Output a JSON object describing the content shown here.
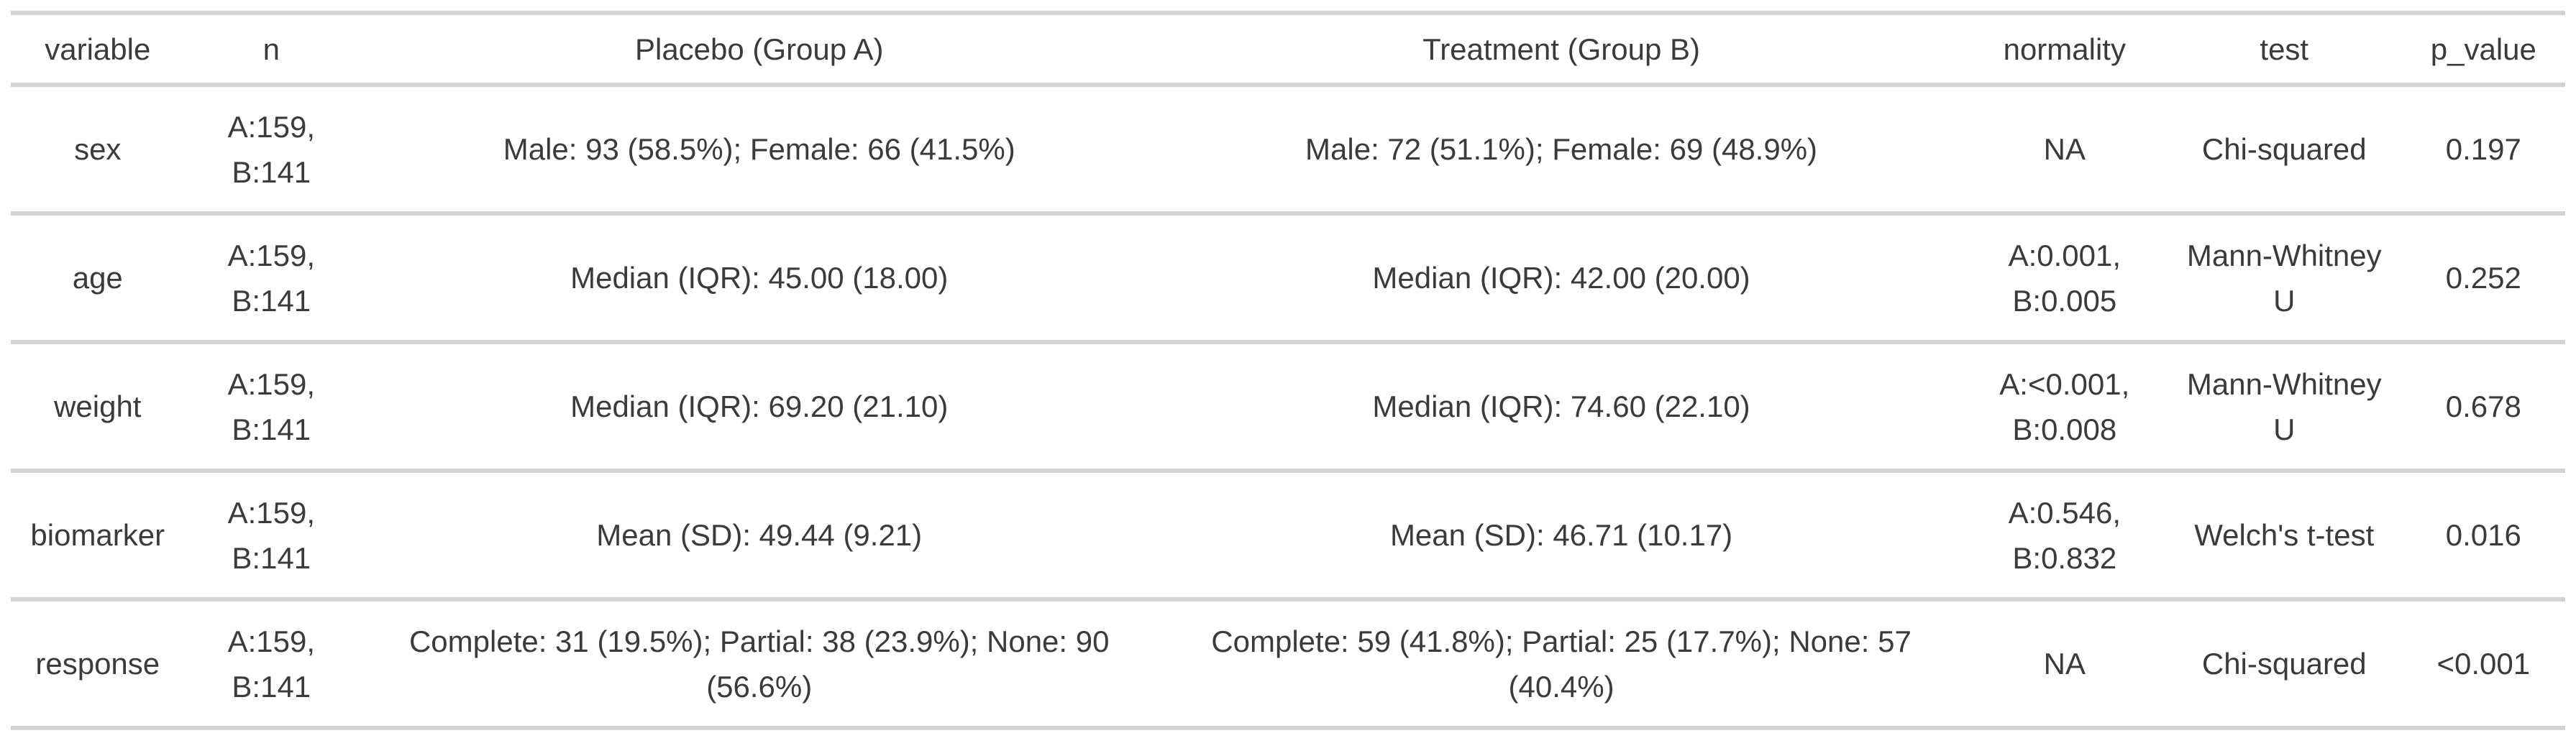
{
  "colors": {
    "background": "#ffffff",
    "text": "#3b3b3b",
    "rule": "#d3d3d3"
  },
  "table": {
    "columns": [
      {
        "key": "variable",
        "label": "variable"
      },
      {
        "key": "n",
        "label": "n"
      },
      {
        "key": "placebo",
        "label": "Placebo (Group A)"
      },
      {
        "key": "treatment",
        "label": "Treatment (Group B)"
      },
      {
        "key": "normality",
        "label": "normality"
      },
      {
        "key": "test",
        "label": "test"
      },
      {
        "key": "p_value",
        "label": "p_value"
      }
    ],
    "rows": [
      {
        "variable": "sex",
        "n": "A:159, B:141",
        "placebo": "Male: 93 (58.5%); Female: 66 (41.5%)",
        "treatment": "Male: 72 (51.1%); Female: 69 (48.9%)",
        "normality": "NA",
        "test": "Chi-squared",
        "p_value": "0.197"
      },
      {
        "variable": "age",
        "n": "A:159, B:141",
        "placebo": "Median (IQR): 45.00 (18.00)",
        "treatment": "Median (IQR): 42.00 (20.00)",
        "normality": "A:0.001, B:0.005",
        "test": "Mann-Whitney U",
        "p_value": "0.252"
      },
      {
        "variable": "weight",
        "n": "A:159, B:141",
        "placebo": "Median (IQR): 69.20 (21.10)",
        "treatment": "Median (IQR): 74.60 (22.10)",
        "normality": "A:<0.001, B:0.008",
        "test": "Mann-Whitney U",
        "p_value": "0.678"
      },
      {
        "variable": "biomarker",
        "n": "A:159, B:141",
        "placebo": "Mean (SD): 49.44 (9.21)",
        "treatment": "Mean (SD): 46.71 (10.17)",
        "normality": "A:0.546, B:0.832",
        "test": "Welch's t-test",
        "p_value": "0.016"
      },
      {
        "variable": "response",
        "n": "A:159, B:141",
        "placebo": "Complete: 31 (19.5%); Partial: 38 (23.9%); None: 90 (56.6%)",
        "treatment": "Complete: 59 (41.8%); Partial: 25 (17.7%); None: 57 (40.4%)",
        "normality": "NA",
        "test": "Chi-squared",
        "p_value": "<0.001"
      }
    ]
  },
  "chart_data": {
    "type": "table",
    "title": "",
    "columns": [
      "variable",
      "n",
      "Placebo (Group A)",
      "Treatment (Group B)",
      "normality",
      "test",
      "p_value"
    ],
    "rows": [
      [
        "sex",
        "A:159, B:141",
        "Male: 93 (58.5%); Female: 66 (41.5%)",
        "Male: 72 (51.1%); Female: 69 (48.9%)",
        "NA",
        "Chi-squared",
        "0.197"
      ],
      [
        "age",
        "A:159, B:141",
        "Median (IQR): 45.00 (18.00)",
        "Median (IQR): 42.00 (20.00)",
        "A:0.001, B:0.005",
        "Mann-Whitney U",
        "0.252"
      ],
      [
        "weight",
        "A:159, B:141",
        "Median (IQR): 69.20 (21.10)",
        "Median (IQR): 74.60 (22.10)",
        "A:<0.001, B:0.008",
        "Mann-Whitney U",
        "0.678"
      ],
      [
        "biomarker",
        "A:159, B:141",
        "Mean (SD): 49.44 (9.21)",
        "Mean (SD): 46.71 (10.17)",
        "A:0.546, B:0.832",
        "Welch's t-test",
        "0.016"
      ],
      [
        "response",
        "A:159, B:141",
        "Complete: 31 (19.5%); Partial: 38 (23.9%); None: 90 (56.6%)",
        "Complete: 59 (41.8%); Partial: 25 (17.7%); None: 57 (40.4%)",
        "NA",
        "Chi-squared",
        "<0.001"
      ]
    ]
  }
}
